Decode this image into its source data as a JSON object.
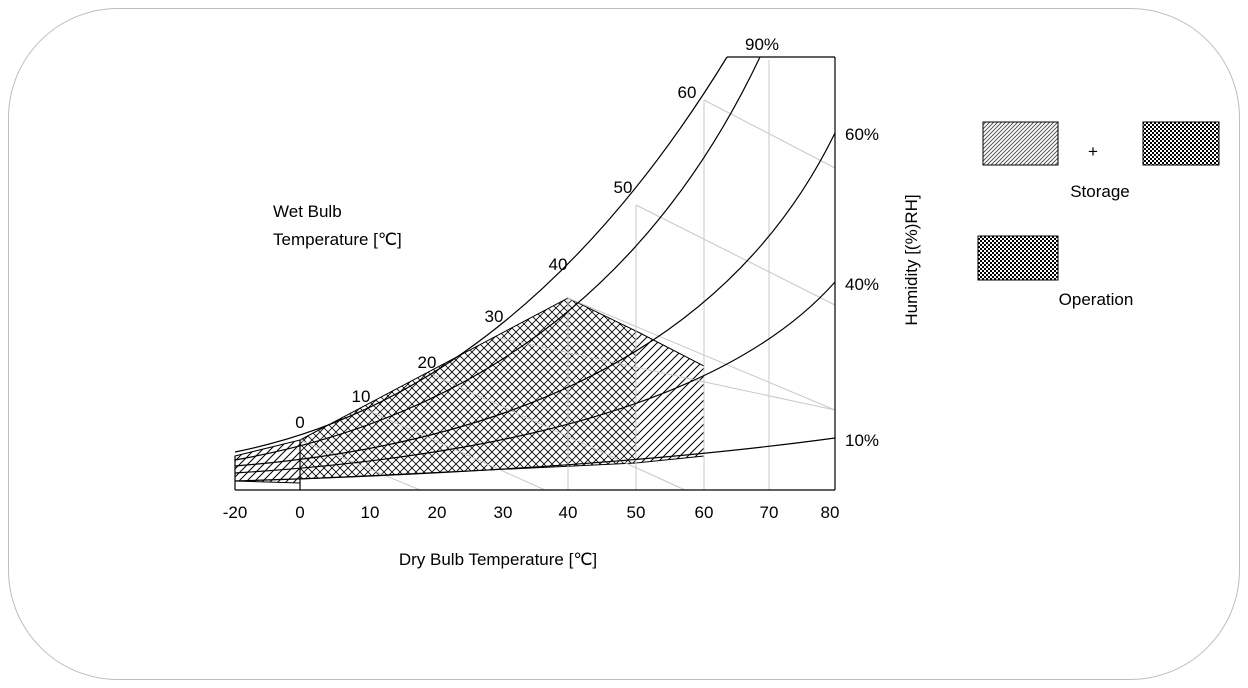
{
  "chart_data": {
    "type": "psychrometric",
    "xlabel": "Dry Bulb Temperature [℃]",
    "ylabel": "Humidity [(%)RH]",
    "x_ticks": [
      -20,
      0,
      10,
      20,
      30,
      40,
      50,
      60,
      70,
      80
    ],
    "xlim": [
      -20,
      80
    ],
    "wet_bulb_label": [
      "Wet Bulb",
      "Temperature [℃]"
    ],
    "wet_bulb_ticks": [
      0,
      10,
      20,
      30,
      40,
      50,
      60
    ],
    "rh_curves": [
      "90%",
      "60%",
      "40%",
      "10%"
    ],
    "regions": [
      {
        "name": "Storage",
        "dry_bulb_range": [
          -20,
          60
        ],
        "max_wet_bulb": 40,
        "humidity_range": [
          "10%",
          "90%"
        ]
      },
      {
        "name": "Operation",
        "dry_bulb_range": [
          0,
          50
        ],
        "max_wet_bulb": 40,
        "humidity_range": [
          "10%",
          "90%"
        ]
      }
    ]
  },
  "legend": {
    "plus": "+",
    "storage_label": "Storage",
    "operation_label": "Operation"
  }
}
